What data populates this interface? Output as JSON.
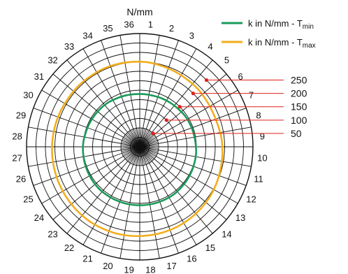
{
  "chart_data": {
    "type": "polar-line",
    "title": "N/mm",
    "sectors": [
      "1",
      "2",
      "3",
      "4",
      "5",
      "6",
      "7",
      "8",
      "9",
      "10",
      "11",
      "12",
      "13",
      "14",
      "15",
      "16",
      "17",
      "18",
      "19",
      "20",
      "21",
      "22",
      "23",
      "24",
      "25",
      "26",
      "27",
      "28",
      "29",
      "30",
      "31",
      "32",
      "33",
      "34",
      "35",
      "36"
    ],
    "radial_ticks": [
      50,
      100,
      150,
      200,
      250
    ],
    "radial_range": [
      0,
      300
    ],
    "series": [
      {
        "name": "k in N/mm - T",
        "subscript": "min",
        "color": "#1a9a5a",
        "values": [
          140,
          140,
          141,
          142,
          143,
          145,
          146,
          147,
          148,
          150,
          151,
          152,
          153,
          154,
          155,
          155,
          155,
          155,
          155,
          155,
          155,
          155,
          155,
          154,
          153,
          152,
          151,
          150,
          148,
          147,
          146,
          145,
          144,
          142,
          141,
          140
        ]
      },
      {
        "name": "k in N/mm - T",
        "subscript": "max",
        "color": "#f2ae1c",
        "values": [
          225,
          222,
          220,
          218,
          217,
          215,
          214,
          215,
          218,
          220,
          222,
          225,
          228,
          230,
          232,
          234,
          235,
          236,
          237,
          238,
          238,
          238,
          237,
          236,
          235,
          234,
          233,
          232,
          231,
          230,
          229,
          229,
          228,
          228,
          227,
          226
        ]
      }
    ],
    "grid": true,
    "legend": "top-right",
    "marker_color": "#e0201a"
  }
}
